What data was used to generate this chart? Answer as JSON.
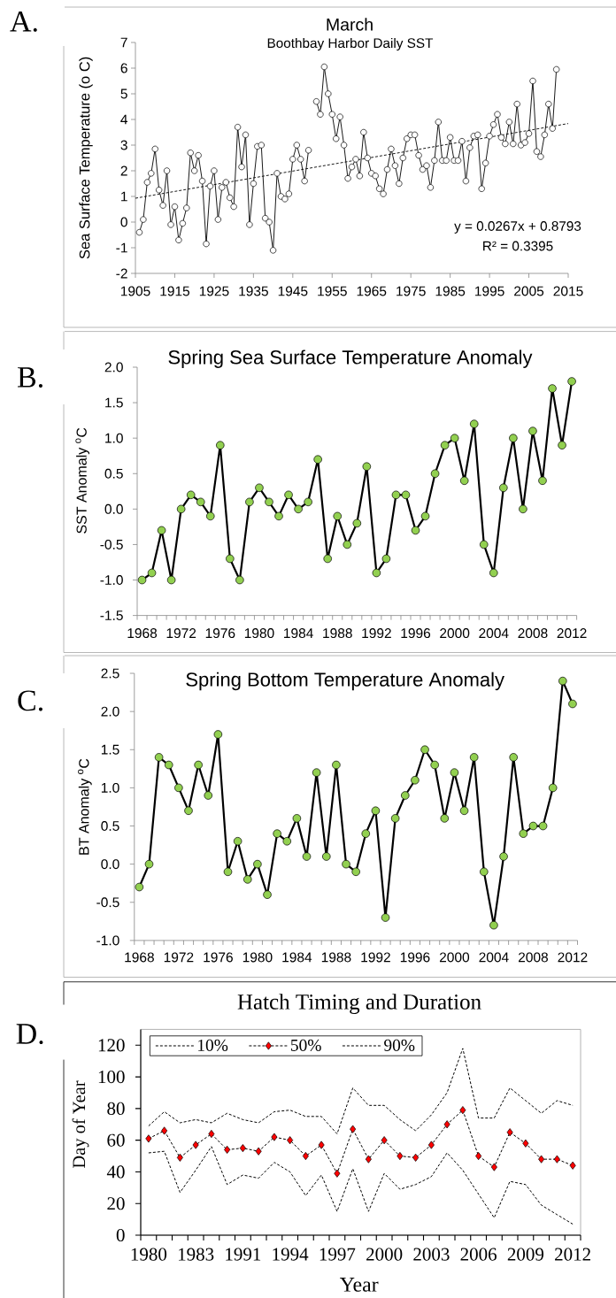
{
  "chart_data": [
    {
      "type": "line",
      "title": "March",
      "subtitle": "Boothbay Harbor Daily SST",
      "ylabel": "Sea Surface Temperature (o C)",
      "annotations": [
        "A.",
        "y = 0.0267x + 0.8793",
        "R² = 0.3395"
      ],
      "marker": "circle",
      "series": [
        {
          "color": "#000000",
          "x": [
            1906,
            1907,
            1908,
            1909,
            1910,
            1911,
            1912,
            1913,
            1914,
            1915,
            1916,
            1917,
            1918,
            1919,
            1920,
            1921,
            1922,
            1923,
            1924,
            1925,
            1926,
            1927,
            1928,
            1929,
            1930,
            1931,
            1932,
            1933,
            1934,
            1935,
            1936,
            1937,
            1938,
            1939,
            1940,
            1941,
            1942,
            1943,
            1944,
            1945,
            1946,
            1947,
            1948,
            1949,
            1950,
            1951,
            1952,
            1953,
            1954,
            1955,
            1956,
            1957,
            1958,
            1959,
            1960,
            1961,
            1962,
            1963,
            1964,
            1965,
            1966,
            1967,
            1968,
            1969,
            1970,
            1971,
            1972,
            1973,
            1974,
            1975,
            1976,
            1977,
            1978,
            1979,
            1980,
            1981,
            1982,
            1983,
            1984,
            1985,
            1986,
            1987,
            1988,
            1989,
            1990,
            1991,
            1992,
            1993,
            1994,
            1995,
            1996,
            1997,
            1998,
            1999,
            2000,
            2001,
            2002,
            2003,
            2004,
            2005,
            2006,
            2007,
            2008,
            2009,
            2010,
            2011,
            2012
          ],
          "values": [
            -0.4,
            0.1,
            1.55,
            1.9,
            2.85,
            1.25,
            0.65,
            2.0,
            -0.1,
            0.6,
            -0.7,
            -0.05,
            0.55,
            2.7,
            2.0,
            2.6,
            1.6,
            -0.85,
            1.4,
            2.0,
            0.1,
            1.35,
            1.55,
            0.95,
            0.6,
            3.7,
            2.15,
            3.4,
            -0.1,
            1.5,
            2.95,
            3.0,
            0.15,
            0.0,
            -1.1,
            1.9,
            1.0,
            0.9,
            1.1,
            2.45,
            3.0,
            2.45,
            1.6,
            2.8,
            null,
            4.7,
            4.2,
            6.05,
            5.0,
            4.2,
            3.25,
            4.1,
            3.0,
            1.7,
            2.15,
            2.45,
            1.8,
            3.5,
            2.5,
            1.9,
            1.8,
            1.3,
            1.1,
            2.05,
            2.85,
            2.2,
            1.5,
            2.5,
            3.25,
            3.4,
            3.4,
            2.6,
            2.05,
            2.2,
            1.35,
            2.4,
            3.9,
            2.4,
            2.4,
            3.3,
            2.4,
            2.4,
            3.15,
            1.6,
            2.9,
            3.35,
            3.4,
            1.3,
            2.3,
            3.35,
            3.8,
            4.2,
            3.3,
            3.05,
            3.9,
            3.05,
            4.6,
            3.0,
            3.1,
            3.45,
            5.5,
            2.75,
            2.55,
            3.4,
            4.6,
            3.65,
            5.95
          ]
        },
        {
          "type": "line",
          "color": "#000000",
          "line_style": "dashed",
          "marker": "none",
          "x": [
            1905,
            2015
          ],
          "values": [
            0.93,
            3.84
          ]
        }
      ],
      "xlim": [
        1905,
        2015
      ],
      "xticks": [
        1905,
        1915,
        1925,
        1935,
        1945,
        1955,
        1965,
        1975,
        1985,
        1995,
        2005,
        2015
      ],
      "ylim": [
        -2,
        7
      ],
      "yticks": [
        -2,
        -1,
        0,
        1,
        2,
        3,
        4,
        5,
        6,
        7
      ]
    },
    {
      "type": "line",
      "title": "Spring Sea Surface Temperature Anomaly",
      "ylabel": "SST Anomaly $^{o}$C",
      "annotations": [
        "B."
      ],
      "marker": "circle",
      "categories": [
        "1968",
        null,
        null,
        null,
        "1972",
        null,
        null,
        null,
        "1976",
        null,
        null,
        null,
        "1980",
        null,
        null,
        null,
        "1984",
        null,
        null,
        null,
        "1988",
        null,
        null,
        null,
        "1992",
        null,
        null,
        null,
        "1996",
        null,
        null,
        null,
        "2000",
        null,
        null,
        null,
        "2004",
        null,
        null,
        null,
        "2008",
        null,
        null,
        null,
        "2012"
      ],
      "series": [
        {
          "color": "#000000",
          "colors": [
            "#92d050",
            "#92d050",
            "#92d050",
            "#92d050",
            "#92d050",
            "#92d050",
            "#92d050",
            "#92d050",
            "#92d050",
            "#92d050",
            "#92d050",
            "#92d050",
            "#92d050",
            "#92d050",
            "#92d050",
            "#92d050",
            "#92d050",
            "#92d050",
            "#92d050",
            "#92d050",
            "#92d050",
            "#92d050",
            "#92d050",
            "#92d050",
            "#92d050",
            "#92d050",
            "#92d050",
            "#92d050",
            "#92d050",
            "#92d050",
            "#92d050",
            "#92d050",
            "#92d050",
            "#92d050",
            "#92d050",
            "#92d050",
            "#92d050",
            "#92d050",
            "#92d050",
            "#92d050",
            "#92d050",
            "#92d050",
            "#92d050",
            "#92d050",
            "#92d050"
          ],
          "values": [
            -1.0,
            -0.9,
            -0.3,
            -1.0,
            0.0,
            0.2,
            0.1,
            -0.1,
            0.9,
            -0.7,
            -1.0,
            0.1,
            0.3,
            0.1,
            -0.1,
            0.2,
            0.0,
            0.1,
            0.7,
            -0.7,
            -0.1,
            -0.5,
            -0.2,
            0.6,
            -0.9,
            -0.7,
            0.2,
            0.2,
            -0.3,
            -0.1,
            0.5,
            0.9,
            1.0,
            0.4,
            1.2,
            -0.5,
            -0.9,
            0.3,
            1.0,
            0.0,
            1.1,
            0.4,
            1.7,
            0.9,
            1.8
          ]
        }
      ],
      "ylim": [
        -1.5,
        2
      ],
      "yticks": [
        -1.5,
        {
          "value": -1,
          "label": "-1.0"
        },
        -0.5,
        {
          "value": 0,
          "label": "0.0"
        },
        0.5,
        {
          "value": 1,
          "label": "1.0"
        },
        1.5,
        {
          "value": 2,
          "label": "2.0"
        }
      ]
    },
    {
      "type": "line",
      "title": "Spring Bottom Temperature Anomaly",
      "ylabel": "BT Anomaly $^{o}$C",
      "annotations": [
        "C."
      ],
      "marker": "circle",
      "categories": [
        "1968",
        null,
        null,
        null,
        "1972",
        null,
        null,
        null,
        "1976",
        null,
        null,
        null,
        "1980",
        null,
        null,
        null,
        "1984",
        null,
        null,
        null,
        "1988",
        null,
        null,
        null,
        "1992",
        null,
        null,
        null,
        "1996",
        null,
        null,
        null,
        "2000",
        null,
        null,
        null,
        "2004",
        null,
        null,
        null,
        "2008",
        null,
        null,
        null,
        "2012"
      ],
      "series": [
        {
          "color": "#000000",
          "colors": [
            "#92d050",
            "#92d050",
            "#92d050",
            "#92d050",
            "#92d050",
            "#92d050",
            "#92d050",
            "#92d050",
            "#92d050",
            "#92d050",
            "#92d050",
            "#92d050",
            "#92d050",
            "#92d050",
            "#92d050",
            "#92d050",
            "#92d050",
            "#92d050",
            "#92d050",
            "#92d050",
            "#92d050",
            "#92d050",
            "#92d050",
            "#92d050",
            "#92d050",
            "#92d050",
            "#92d050",
            "#92d050",
            "#92d050",
            "#92d050",
            "#92d050",
            "#92d050",
            "#92d050",
            "#92d050",
            "#92d050",
            "#92d050",
            "#92d050",
            "#92d050",
            "#92d050",
            "#92d050",
            "#92d050",
            "#92d050",
            "#92d050",
            "#92d050",
            "#92d050"
          ],
          "values": [
            -0.3,
            0.0,
            1.4,
            1.3,
            1.0,
            0.7,
            1.3,
            0.9,
            1.7,
            -0.1,
            0.3,
            -0.2,
            0.0,
            -0.4,
            0.4,
            0.3,
            0.6,
            0.1,
            1.2,
            0.1,
            1.3,
            0.0,
            -0.1,
            0.4,
            0.7,
            -0.7,
            0.6,
            0.9,
            1.1,
            1.5,
            1.3,
            0.6,
            1.2,
            0.7,
            1.4,
            -0.1,
            -0.8,
            0.1,
            1.4,
            0.4,
            0.5,
            0.5,
            1.0,
            2.4,
            2.1
          ]
        }
      ],
      "ylim": [
        -1,
        2.5
      ],
      "yticks": [
        {
          "value": -1,
          "label": "-1.0"
        },
        -0.5,
        {
          "value": 0,
          "label": "0.0"
        },
        0.5,
        {
          "value": 1,
          "label": "1.0"
        },
        1.5,
        {
          "value": 2,
          "label": "2.0"
        },
        2.5
      ]
    },
    {
      "type": "line",
      "title": "Hatch Timing and Duration",
      "xlabel": "Year",
      "ylabel": "Day of Year",
      "annotations": [
        "D."
      ],
      "line_style": "dashed",
      "legend": "top left",
      "categories": [
        "1980",
        null,
        null,
        "1983",
        null,
        null,
        "1991",
        null,
        null,
        "1994",
        null,
        null,
        "1997",
        null,
        null,
        "2000",
        null,
        null,
        "2003",
        null,
        null,
        "2006",
        null,
        null,
        "2009",
        null,
        null,
        "2012"
      ],
      "series": [
        {
          "name": "10%",
          "color": "#000000",
          "values": [
            52,
            53,
            27,
            41,
            56,
            32,
            38,
            36,
            46,
            40,
            25,
            38,
            15,
            42,
            15,
            39,
            29,
            32,
            37,
            52,
            41,
            26,
            11,
            34,
            32,
            19,
            13,
            7
          ]
        },
        {
          "name": "50%",
          "color": "#000000",
          "marker": "diamond",
          "colors": [
            "#ff0000",
            "#ff0000",
            "#ff0000",
            "#ff0000",
            "#ff0000",
            "#ff0000",
            "#ff0000",
            "#ff0000",
            "#ff0000",
            "#ff0000",
            "#ff0000",
            "#ff0000",
            "#ff0000",
            "#ff0000",
            "#ff0000",
            "#ff0000",
            "#ff0000",
            "#ff0000",
            "#ff0000",
            "#ff0000",
            "#ff0000",
            "#ff0000",
            "#ff0000",
            "#ff0000",
            "#ff0000",
            "#ff0000",
            "#ff0000",
            "#ff0000"
          ],
          "values": [
            61,
            66,
            49,
            57,
            64,
            54,
            55,
            53,
            62,
            60,
            50,
            57,
            39,
            67,
            48,
            60,
            50,
            49,
            57,
            70,
            79,
            50,
            43,
            65,
            58,
            48,
            48,
            44
          ]
        },
        {
          "name": "90%",
          "color": "#000000",
          "values": [
            69,
            78,
            71,
            73,
            71,
            77,
            73,
            71,
            78,
            79,
            75,
            75,
            64,
            93,
            82,
            82,
            73,
            66,
            76,
            90,
            118,
            74,
            74,
            93,
            85,
            77,
            85,
            82
          ]
        }
      ],
      "ylim": [
        0,
        130
      ],
      "yticks": [
        0,
        20,
        40,
        60,
        80,
        100,
        120
      ]
    }
  ]
}
